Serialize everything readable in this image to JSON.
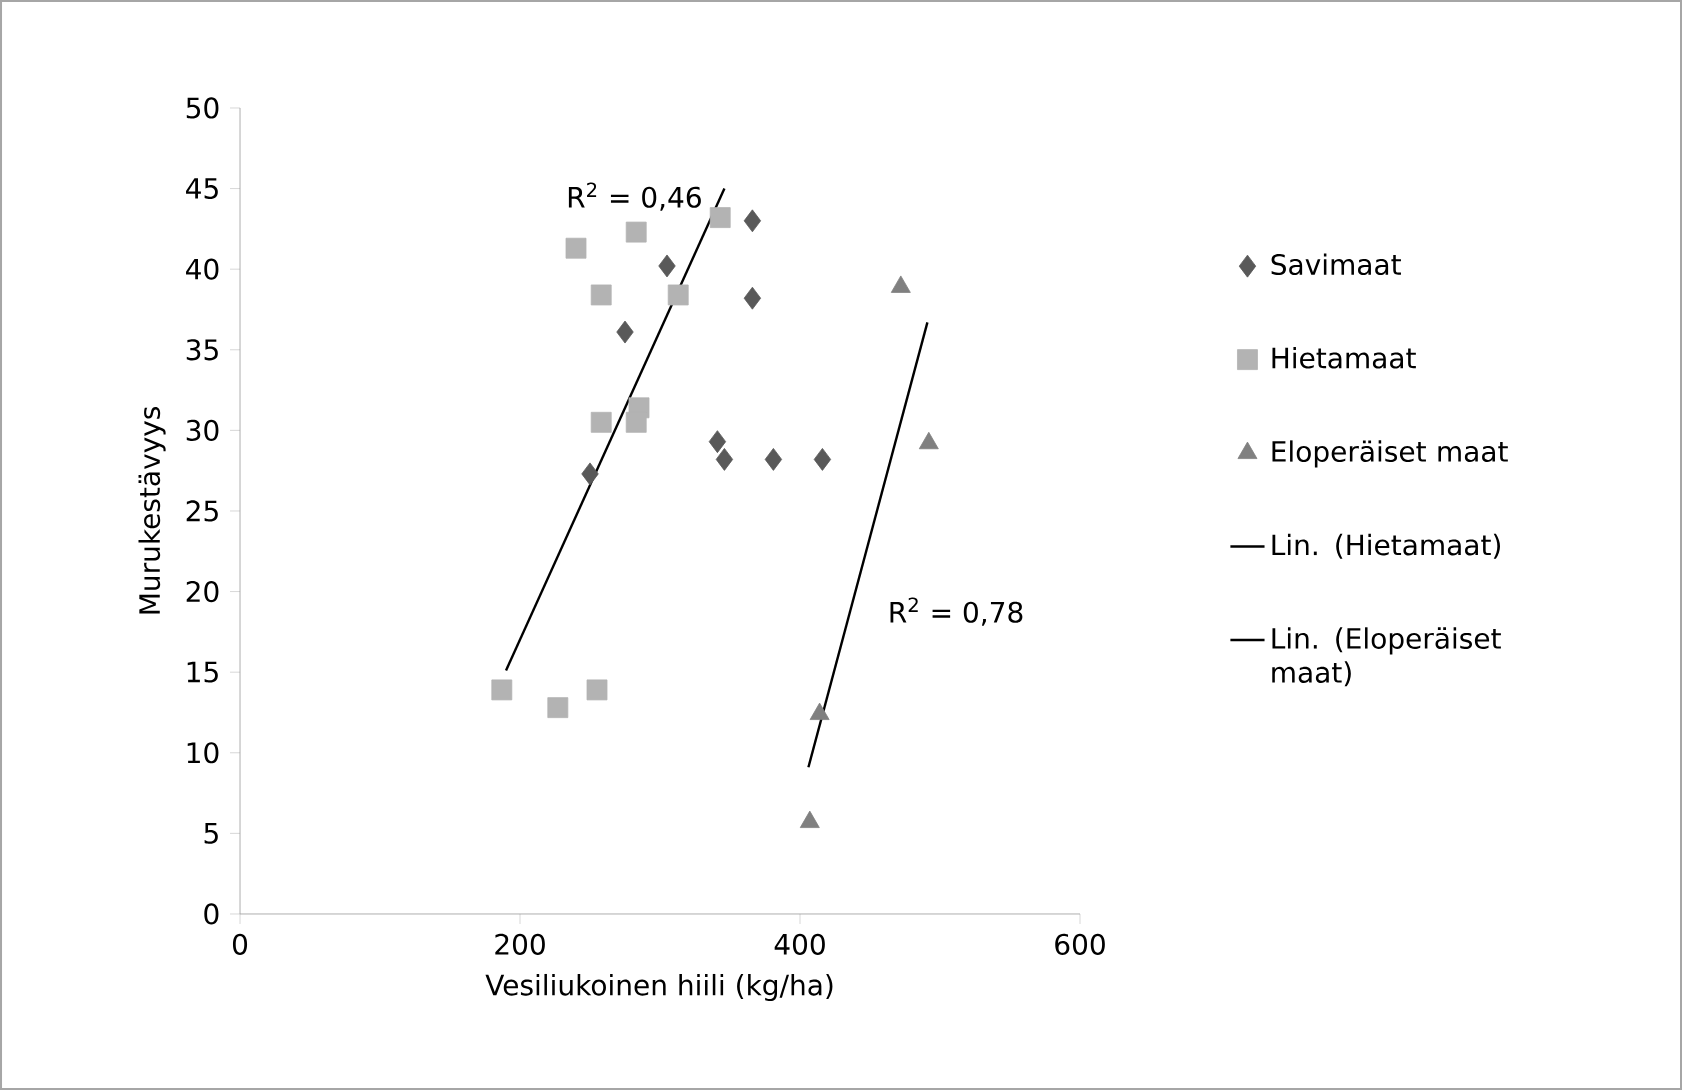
{
  "chart_data": {
    "type": "scatter",
    "xlabel": "Vesiliukoinen hiili (kg/ha)",
    "ylabel": "Murukestävyys",
    "xlim": [
      0,
      600
    ],
    "xticks": [
      0,
      200,
      400,
      600
    ],
    "ylim": [
      0,
      50
    ],
    "yticks": [
      0,
      5,
      10,
      15,
      20,
      25,
      30,
      35,
      40,
      45,
      50
    ],
    "grid": false,
    "legend": "right",
    "series": [
      {
        "name": "Savimaat",
        "color": "#595959",
        "marker": "diamond",
        "x": [
          366,
          305,
          366,
          275,
          341,
          346,
          381,
          416,
          250
        ],
        "values": [
          43.0,
          40.2,
          38.2,
          36.1,
          29.3,
          28.2,
          28.2,
          28.2,
          27.3
        ]
      },
      {
        "name": "Hietamaat",
        "color": "#b3b3b3",
        "marker": "square",
        "x": [
          343,
          283,
          240,
          258,
          313,
          285,
          258,
          283,
          187,
          227,
          255
        ],
        "values": [
          43.2,
          42.3,
          41.3,
          38.4,
          38.4,
          31.4,
          30.5,
          30.5,
          13.9,
          12.8,
          13.9
        ]
      },
      {
        "name": "Eloperäiset maat",
        "color": "#808080",
        "marker": "triangle",
        "x": [
          472,
          492,
          414,
          407
        ],
        "values": [
          38.9,
          29.2,
          12.4,
          5.7
        ]
      },
      {
        "name": "Lin. (Hietamaat)",
        "type": "line",
        "color": "#000000",
        "marker": "none",
        "x": [
          190,
          346
        ],
        "values": [
          15.1,
          45.0
        ]
      },
      {
        "name": "Lin. (Eloperäiset maat)",
        "type": "line",
        "color": "#000000",
        "marker": "none",
        "x": [
          406,
          491
        ],
        "values": [
          9.1,
          36.7
        ]
      }
    ],
    "annotations": [
      "R$^{2}$ = 0,46",
      "R$^{2}$ = 0,78"
    ]
  }
}
